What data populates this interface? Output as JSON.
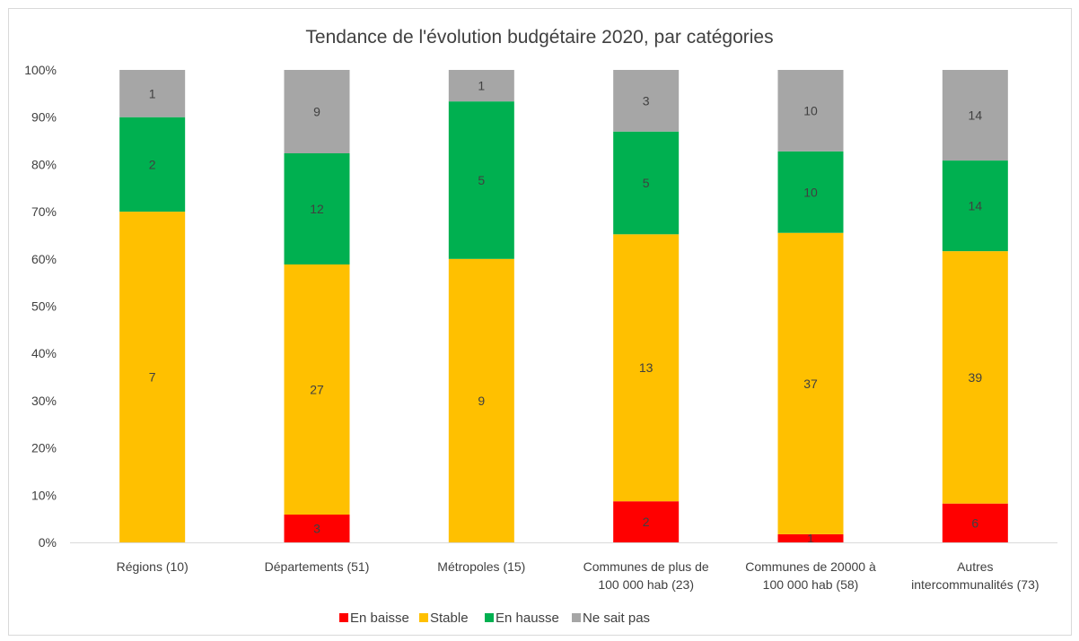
{
  "chart_data": {
    "type": "bar",
    "stacked": true,
    "normalized": true,
    "title": "Tendance de l'évolution budgétaire 2020, par catégories",
    "categories": [
      [
        "Régions (10)"
      ],
      [
        "Départements (51)"
      ],
      [
        "Métropoles (15)"
      ],
      [
        "Communes de plus de",
        "100 000 hab (23)"
      ],
      [
        "Communes de 20000 à",
        "100 000 hab (58)"
      ],
      [
        "Autres",
        "intercommunalités (73)"
      ]
    ],
    "series": [
      {
        "name": "En baisse",
        "color": "#ff0000",
        "values": [
          0,
          3,
          0,
          2,
          1,
          6
        ]
      },
      {
        "name": "Stable",
        "color": "#ffc000",
        "values": [
          7,
          27,
          9,
          13,
          37,
          39
        ]
      },
      {
        "name": "En hausse",
        "color": "#00b050",
        "values": [
          2,
          12,
          5,
          5,
          10,
          14
        ]
      },
      {
        "name": "Ne sait pas",
        "color": "#a6a6a6",
        "values": [
          1,
          9,
          1,
          3,
          10,
          14
        ]
      }
    ],
    "y_ticks": [
      "0%",
      "10%",
      "20%",
      "30%",
      "40%",
      "50%",
      "60%",
      "70%",
      "80%",
      "90%",
      "100%"
    ],
    "ylim": [
      0,
      1
    ],
    "grid": false,
    "legend_position": "bottom"
  }
}
